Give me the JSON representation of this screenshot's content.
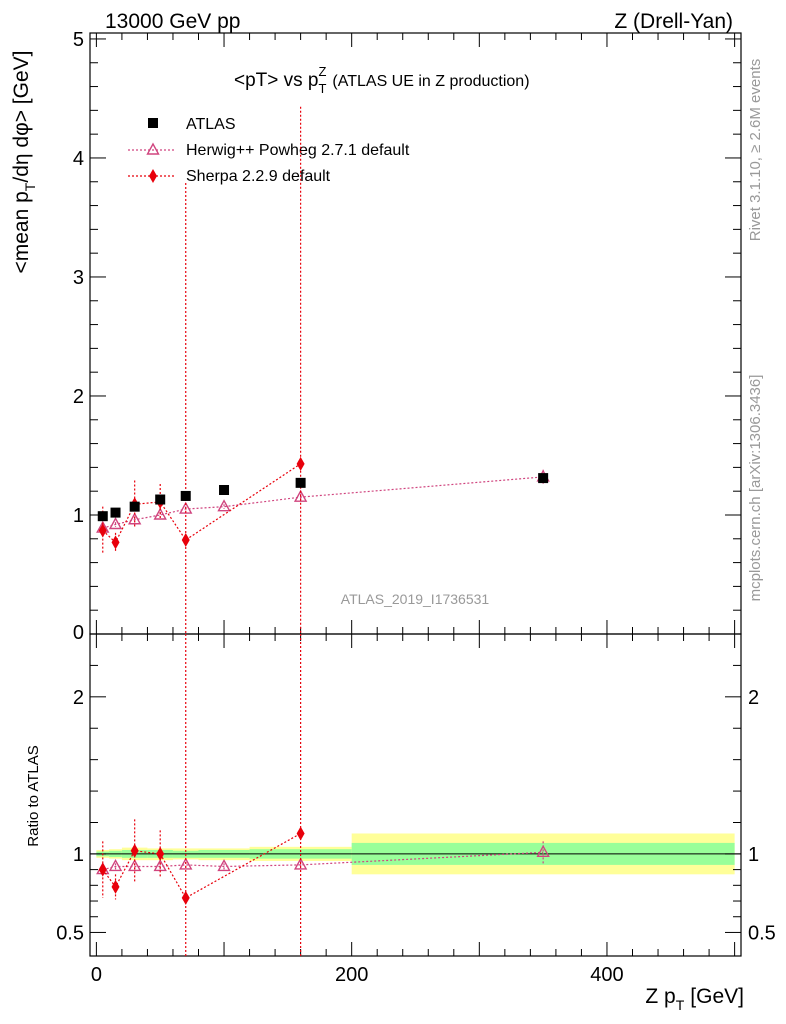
{
  "header": {
    "left": "13000 GeV pp",
    "right": "Z (Drell-Yan)"
  },
  "side_labels": {
    "rivet": "Rivet 3.1.10, ≥ 2.6M events",
    "mcplots": "mcplots.cern.ch [arXiv:1306.3436]"
  },
  "colors": {
    "atlas": "#000000",
    "herwig": "#d0457f",
    "sherpa": "#e8000b",
    "band_inner": "#99ff99",
    "band_outer": "#ffff99"
  },
  "chart_data": [
    {
      "type": "scatter",
      "title": "<pT> vs p",
      "title_sup": "Z",
      "title_sub": "T",
      "title_suffix": "(ATLAS UE in Z production)",
      "ylabel": "<mean p",
      "ylabel_sub": "T",
      "ylabel_suffix": "/dη dφ> [GeV]",
      "watermark": "ATLAS_2019_I1736531",
      "xlim": [
        -5,
        505
      ],
      "ylim": [
        0,
        5.05
      ],
      "yticks": [
        1,
        2,
        3,
        4,
        5
      ],
      "ytick_labels": [
        "1",
        "2",
        "3",
        "4",
        "5"
      ],
      "ytick_extra_label": "0",
      "legend_position": "top-left",
      "series": [
        {
          "name": "ATLAS",
          "marker": "square",
          "x": [
            5,
            15,
            30,
            50,
            70,
            100,
            160,
            350
          ],
          "y": [
            0.99,
            1.02,
            1.07,
            1.13,
            1.16,
            1.21,
            1.27,
            1.31
          ]
        },
        {
          "name": "Herwig++ Powheg 2.7.1 default",
          "marker": "triangle-open",
          "x": [
            5,
            15,
            30,
            50,
            70,
            100,
            160,
            350
          ],
          "y": [
            0.89,
            0.92,
            0.96,
            1.0,
            1.05,
            1.07,
            1.15,
            1.32
          ],
          "yerr": [
            0.02,
            0.02,
            0.02,
            0.02,
            0.02,
            0.02,
            0.03,
            0.06
          ]
        },
        {
          "name": "Sherpa 2.2.9 default",
          "marker": "diamond",
          "x": [
            5,
            15,
            30,
            50,
            70,
            160
          ],
          "y": [
            0.87,
            0.77,
            1.09,
            1.11,
            0.79,
            1.43
          ],
          "yerr": [
            0.2,
            0.08,
            0.2,
            0.15,
            3.0,
            3.0
          ]
        }
      ]
    },
    {
      "type": "scatter",
      "ylabel": "Ratio to ATLAS",
      "xlabel": "Z p",
      "xlabel_sub": "T",
      "xlabel_suffix": "[GeV]",
      "xlim": [
        -5,
        505
      ],
      "xticks": [
        0,
        200,
        400
      ],
      "xtick_labels": [
        "0",
        "200",
        "400"
      ],
      "ylim": [
        0.35,
        2.4
      ],
      "yticks": [
        0.5,
        1,
        2
      ],
      "ytick_labels": [
        "0.5",
        "1",
        "2"
      ],
      "uncertainty_bands": [
        {
          "x_range": [
            0,
            10
          ],
          "inner": [
            0.985,
            1.015
          ],
          "outer": [
            0.975,
            1.025
          ]
        },
        {
          "x_range": [
            10,
            20
          ],
          "inner": [
            0.98,
            1.02
          ],
          "outer": [
            0.97,
            1.03
          ]
        },
        {
          "x_range": [
            20,
            40
          ],
          "inner": [
            0.975,
            1.025
          ],
          "outer": [
            0.96,
            1.04
          ]
        },
        {
          "x_range": [
            40,
            60
          ],
          "inner": [
            0.975,
            1.025
          ],
          "outer": [
            0.96,
            1.035
          ]
        },
        {
          "x_range": [
            60,
            80
          ],
          "inner": [
            0.975,
            1.02
          ],
          "outer": [
            0.965,
            1.035
          ]
        },
        {
          "x_range": [
            80,
            120
          ],
          "inner": [
            0.975,
            1.025
          ],
          "outer": [
            0.96,
            1.035
          ]
        },
        {
          "x_range": [
            120,
            200
          ],
          "inner": [
            0.97,
            1.03
          ],
          "outer": [
            0.955,
            1.045
          ]
        },
        {
          "x_range": [
            200,
            500
          ],
          "inner": [
            0.93,
            1.07
          ],
          "outer": [
            0.87,
            1.13
          ]
        }
      ],
      "series": [
        {
          "name": "Herwig++ Powheg 2.7.1 default",
          "marker": "triangle-open",
          "x": [
            5,
            15,
            30,
            50,
            70,
            100,
            160,
            350
          ],
          "y": [
            0.9,
            0.92,
            0.92,
            0.92,
            0.93,
            0.92,
            0.93,
            1.01
          ],
          "yerr": [
            0.02,
            0.02,
            0.02,
            0.02,
            0.02,
            0.02,
            0.03,
            0.07
          ]
        },
        {
          "name": "Sherpa 2.2.9 default",
          "marker": "diamond",
          "x": [
            5,
            15,
            30,
            50,
            70,
            160
          ],
          "y": [
            0.9,
            0.79,
            1.02,
            1.0,
            0.72,
            1.13
          ],
          "yerr": [
            0.18,
            0.08,
            0.2,
            0.15,
            3.0,
            3.0
          ]
        }
      ]
    }
  ]
}
